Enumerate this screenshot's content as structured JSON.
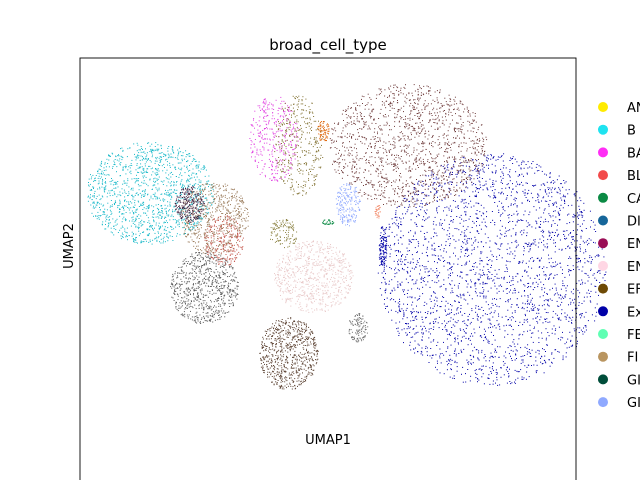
{
  "chart_data": {
    "type": "scatter",
    "title": "broad_cell_type",
    "xlabel": "UMAP1",
    "ylabel": "UMAP2",
    "grid": false,
    "legend_placement": "right-outside",
    "x_ticks": "none",
    "y_ticks": "none",
    "legend": [
      {
        "label": "AN",
        "color": "#ffeb00"
      },
      {
        "label": "B",
        "color": "#1ee3f0"
      },
      {
        "label": "BA",
        "color": "#ff2df5"
      },
      {
        "label": "BL",
        "color": "#f24a4a"
      },
      {
        "label": "CA",
        "color": "#0b8a44"
      },
      {
        "label": "DI",
        "color": "#16669a"
      },
      {
        "label": "EN",
        "color": "#9a0d56"
      },
      {
        "label": "EN",
        "color": "#ffd6e4"
      },
      {
        "label": "EF",
        "color": "#6e4a05"
      },
      {
        "label": "Ex",
        "color": "#0000a8"
      },
      {
        "label": "FE",
        "color": "#5fffb3"
      },
      {
        "label": "FI",
        "color": "#b99560"
      },
      {
        "label": "GI",
        "color": "#004d3a"
      },
      {
        "label": "GI",
        "color": "#8fa9ff"
      }
    ],
    "clusters": [
      {
        "name": "big-right",
        "color": "#0000a8",
        "cx": 0.83,
        "cy": 0.42,
        "rx": 0.23,
        "ry": 0.32,
        "n": 2600
      },
      {
        "name": "top-right",
        "color": "#6e3b3b",
        "cx": 0.66,
        "cy": 0.76,
        "rx": 0.16,
        "ry": 0.17,
        "n": 1400
      },
      {
        "name": "left-cyan",
        "color": "#17b8c8",
        "cx": 0.14,
        "cy": 0.63,
        "rx": 0.13,
        "ry": 0.14,
        "n": 1300
      },
      {
        "name": "left-darkgrey",
        "color": "#5a5a5a",
        "cx": 0.25,
        "cy": 0.37,
        "rx": 0.07,
        "ry": 0.1,
        "n": 700
      },
      {
        "name": "left-brown-mix",
        "color": "#9a7a5a",
        "cx": 0.27,
        "cy": 0.56,
        "rx": 0.07,
        "ry": 0.1,
        "n": 600
      },
      {
        "name": "left-red-mix",
        "color": "#c55a50",
        "cx": 0.29,
        "cy": 0.5,
        "rx": 0.04,
        "ry": 0.07,
        "n": 250
      },
      {
        "name": "bottom-mid",
        "color": "#5a4030",
        "cx": 0.42,
        "cy": 0.19,
        "rx": 0.06,
        "ry": 0.1,
        "n": 700
      },
      {
        "name": "mid-pink",
        "color": "#e8c8c8",
        "cx": 0.47,
        "cy": 0.4,
        "rx": 0.08,
        "ry": 0.1,
        "n": 700
      },
      {
        "name": "top-magenta",
        "color": "#e040e0",
        "cx": 0.39,
        "cy": 0.78,
        "rx": 0.05,
        "ry": 0.12,
        "n": 350
      },
      {
        "name": "top-olive",
        "color": "#807030",
        "cx": 0.44,
        "cy": 0.76,
        "rx": 0.05,
        "ry": 0.14,
        "n": 350
      },
      {
        "name": "dark-purple-knot",
        "color": "#402040",
        "cx": 0.22,
        "cy": 0.6,
        "rx": 0.03,
        "ry": 0.05,
        "n": 250
      },
      {
        "name": "light-blue",
        "color": "#8fa9ff",
        "cx": 0.54,
        "cy": 0.6,
        "rx": 0.025,
        "ry": 0.06,
        "n": 200
      },
      {
        "name": "orange-blob",
        "color": "#e06a10",
        "cx": 0.49,
        "cy": 0.8,
        "rx": 0.012,
        "ry": 0.03,
        "n": 80
      },
      {
        "name": "small-grey",
        "color": "#707070",
        "cx": 0.56,
        "cy": 0.26,
        "rx": 0.02,
        "ry": 0.04,
        "n": 120
      },
      {
        "name": "mid-olive-small",
        "color": "#8a8040",
        "cx": 0.41,
        "cy": 0.52,
        "rx": 0.03,
        "ry": 0.04,
        "n": 120
      },
      {
        "name": "thin-blue-edge",
        "color": "#0000a8",
        "cx": 0.61,
        "cy": 0.48,
        "rx": 0.008,
        "ry": 0.06,
        "n": 120
      },
      {
        "name": "green-tiny",
        "color": "#0b8a44",
        "cx": 0.5,
        "cy": 0.55,
        "rx": 0.012,
        "ry": 0.008,
        "n": 30
      },
      {
        "name": "salmon-tiny",
        "color": "#f28a6a",
        "cx": 0.6,
        "cy": 0.58,
        "rx": 0.006,
        "ry": 0.02,
        "n": 30
      }
    ]
  }
}
